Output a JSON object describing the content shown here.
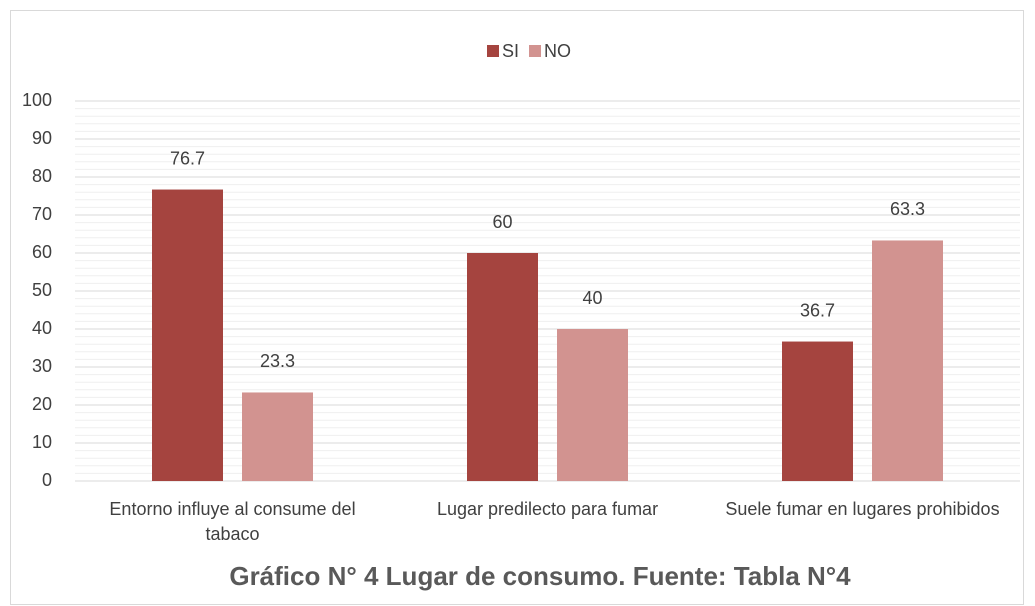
{
  "chart_data": {
    "type": "bar",
    "title": "Gráfico N° 4 Lugar de consumo. Fuente: Tabla N°4",
    "categories": [
      "Entorno influye al consume del tabaco",
      "Lugar predilecto para fumar",
      "Suele fumar en lugares prohibidos"
    ],
    "series": [
      {
        "name": "SI",
        "color": "#a5443f",
        "values": [
          76.7,
          60,
          36.7
        ]
      },
      {
        "name": "NO",
        "color": "#d29390",
        "values": [
          23.3,
          40,
          63.3
        ]
      }
    ],
    "ylim": [
      0,
      100
    ],
    "yticks": [
      0,
      10,
      20,
      30,
      40,
      50,
      60,
      70,
      80,
      90,
      100
    ],
    "grid": true,
    "legend": "top"
  }
}
